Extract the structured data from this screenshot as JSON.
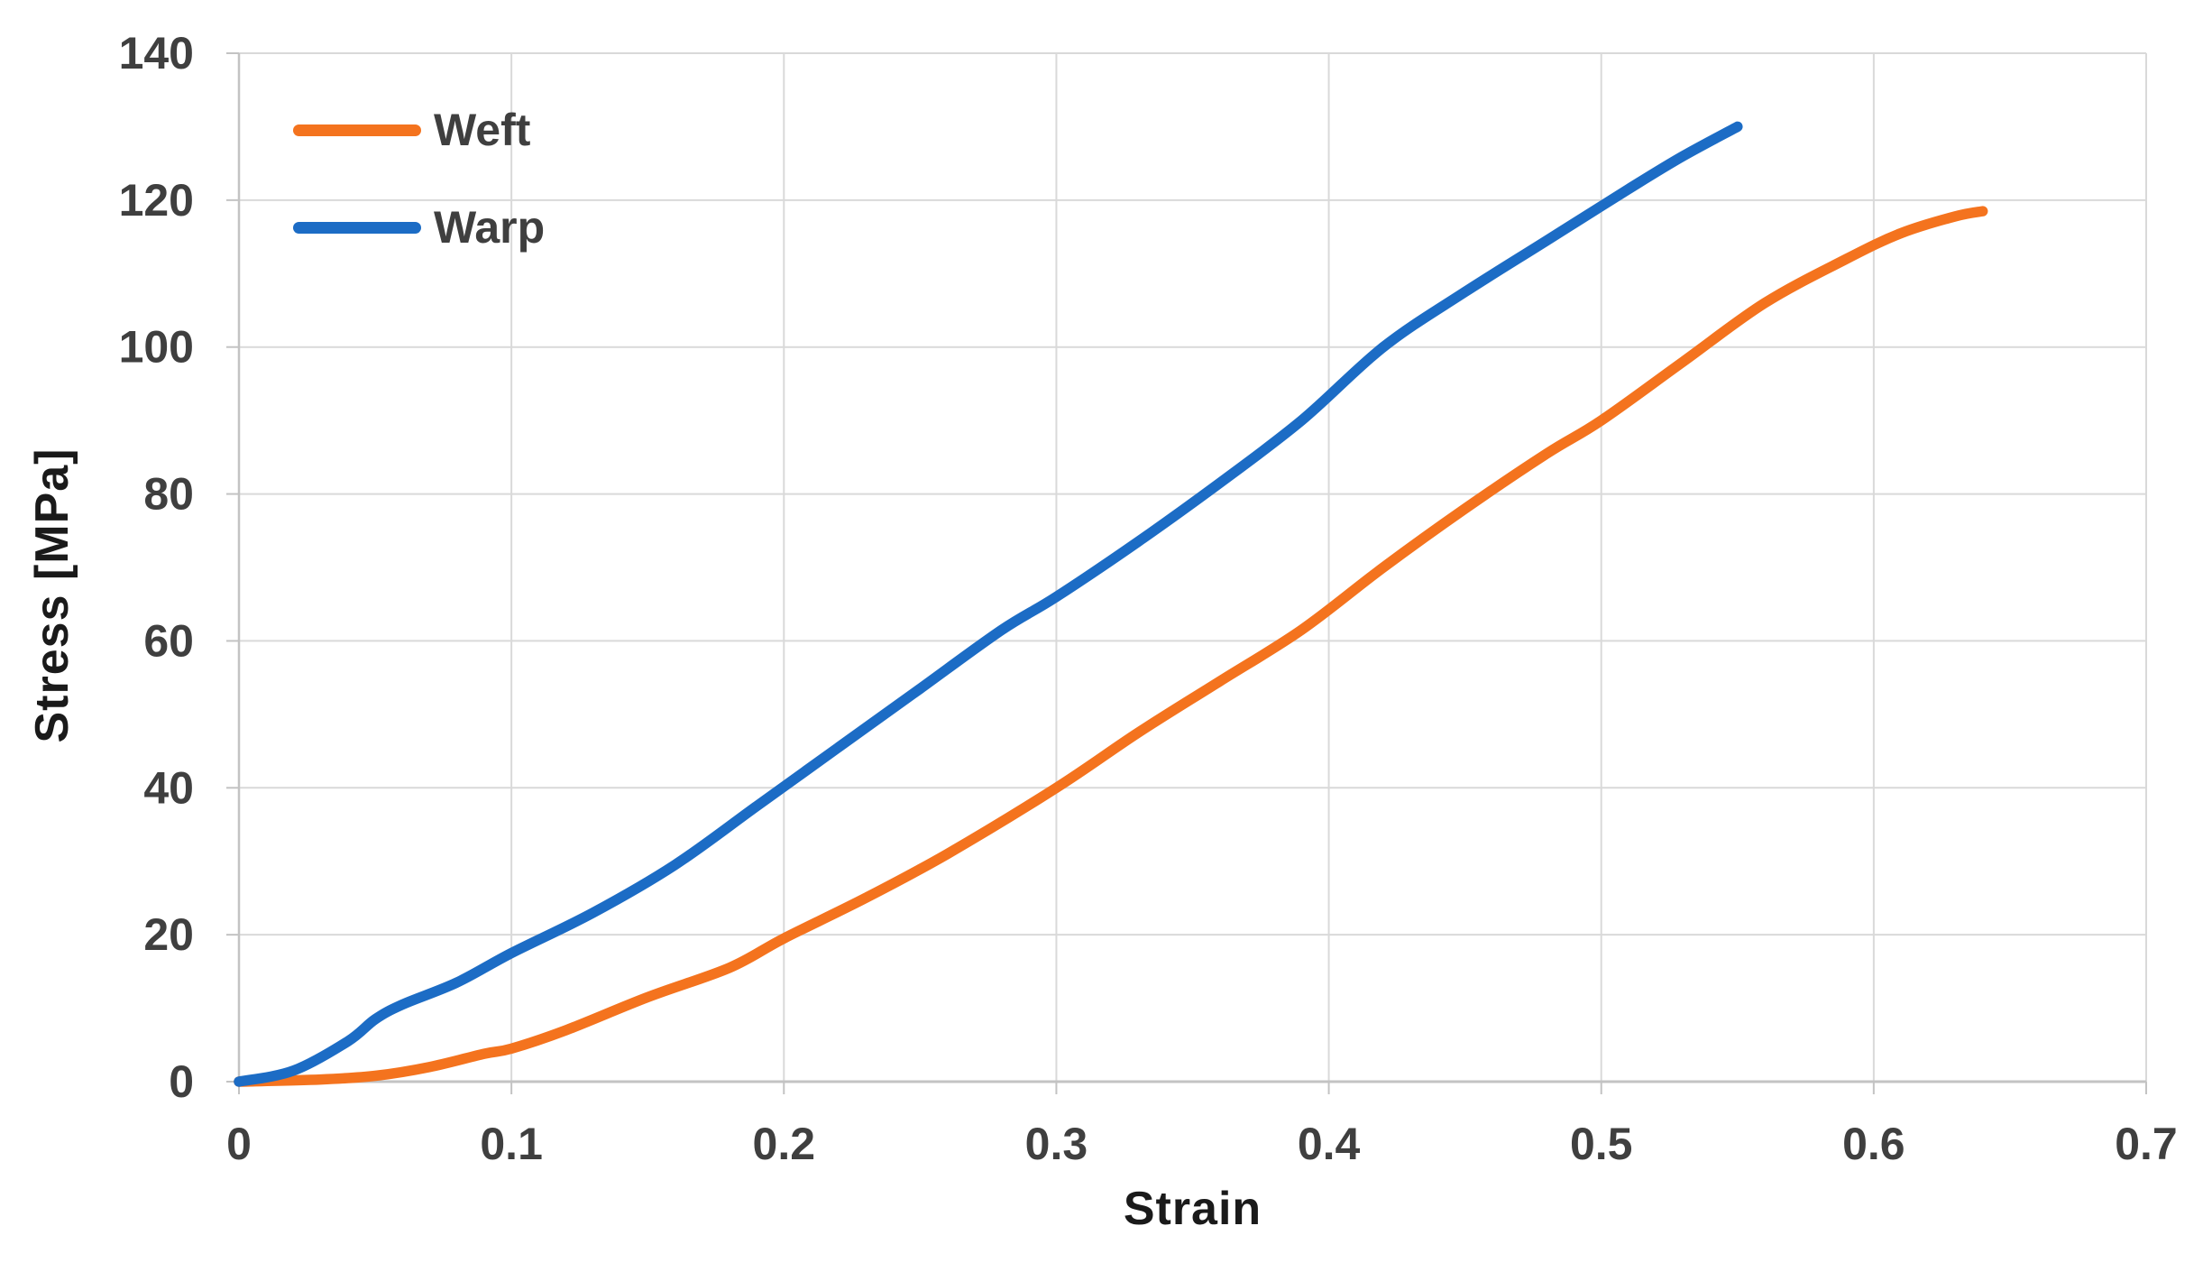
{
  "chart_data": {
    "type": "line",
    "title": "",
    "xlabel": "Strain",
    "ylabel": "Stress [MPa]",
    "xlim": [
      0,
      0.7
    ],
    "ylim": [
      0,
      140
    ],
    "grid": true,
    "legend_position": "top-left-inside",
    "x_ticks": {
      "values": [
        0,
        0.1,
        0.2,
        0.3,
        0.4,
        0.5,
        0.6,
        0.7
      ],
      "labels": [
        "0",
        "0.1",
        "0.2",
        "0.3",
        "0.4",
        "0.5",
        "0.6",
        "0.7"
      ]
    },
    "y_ticks": {
      "values": [
        0,
        20,
        40,
        60,
        80,
        100,
        120,
        140
      ],
      "labels": [
        "0",
        "20",
        "40",
        "60",
        "80",
        "100",
        "120",
        "140"
      ]
    },
    "series": [
      {
        "name": "Weft",
        "color": "#F4731E",
        "points": [
          [
            0,
            0
          ],
          [
            0.03,
            0.3
          ],
          [
            0.05,
            0.8
          ],
          [
            0.07,
            2
          ],
          [
            0.09,
            3.8
          ],
          [
            0.1,
            4.5
          ],
          [
            0.12,
            7
          ],
          [
            0.15,
            11.5
          ],
          [
            0.18,
            15.5
          ],
          [
            0.2,
            19.5
          ],
          [
            0.23,
            25
          ],
          [
            0.26,
            31
          ],
          [
            0.3,
            40
          ],
          [
            0.33,
            47.5
          ],
          [
            0.36,
            54.5
          ],
          [
            0.39,
            61.5
          ],
          [
            0.42,
            70
          ],
          [
            0.45,
            78
          ],
          [
            0.48,
            85.5
          ],
          [
            0.5,
            90
          ],
          [
            0.53,
            98
          ],
          [
            0.56,
            106
          ],
          [
            0.59,
            112
          ],
          [
            0.61,
            115.5
          ],
          [
            0.63,
            117.8
          ],
          [
            0.64,
            118.5
          ]
        ]
      },
      {
        "name": "Warp",
        "color": "#1C6CC5",
        "points": [
          [
            0,
            0
          ],
          [
            0.02,
            1.5
          ],
          [
            0.04,
            5.5
          ],
          [
            0.05,
            8.5
          ],
          [
            0.06,
            10.5
          ],
          [
            0.08,
            13.5
          ],
          [
            0.1,
            17.5
          ],
          [
            0.13,
            23
          ],
          [
            0.16,
            29.5
          ],
          [
            0.19,
            37.5
          ],
          [
            0.22,
            45.5
          ],
          [
            0.25,
            53.5
          ],
          [
            0.28,
            61.5
          ],
          [
            0.3,
            66
          ],
          [
            0.33,
            73.5
          ],
          [
            0.36,
            81.5
          ],
          [
            0.39,
            90
          ],
          [
            0.42,
            100
          ],
          [
            0.45,
            107.5
          ],
          [
            0.48,
            114.5
          ],
          [
            0.51,
            121.5
          ],
          [
            0.53,
            126
          ],
          [
            0.55,
            130
          ]
        ]
      }
    ]
  },
  "colors": {
    "background": "#ffffff",
    "gridline": "#d9d9d9",
    "axis_line": "#c3c3c3",
    "tick_label": "#3f3f3f",
    "axis_title": "#1a1a1a",
    "legend_text": "#3f3f3f"
  }
}
